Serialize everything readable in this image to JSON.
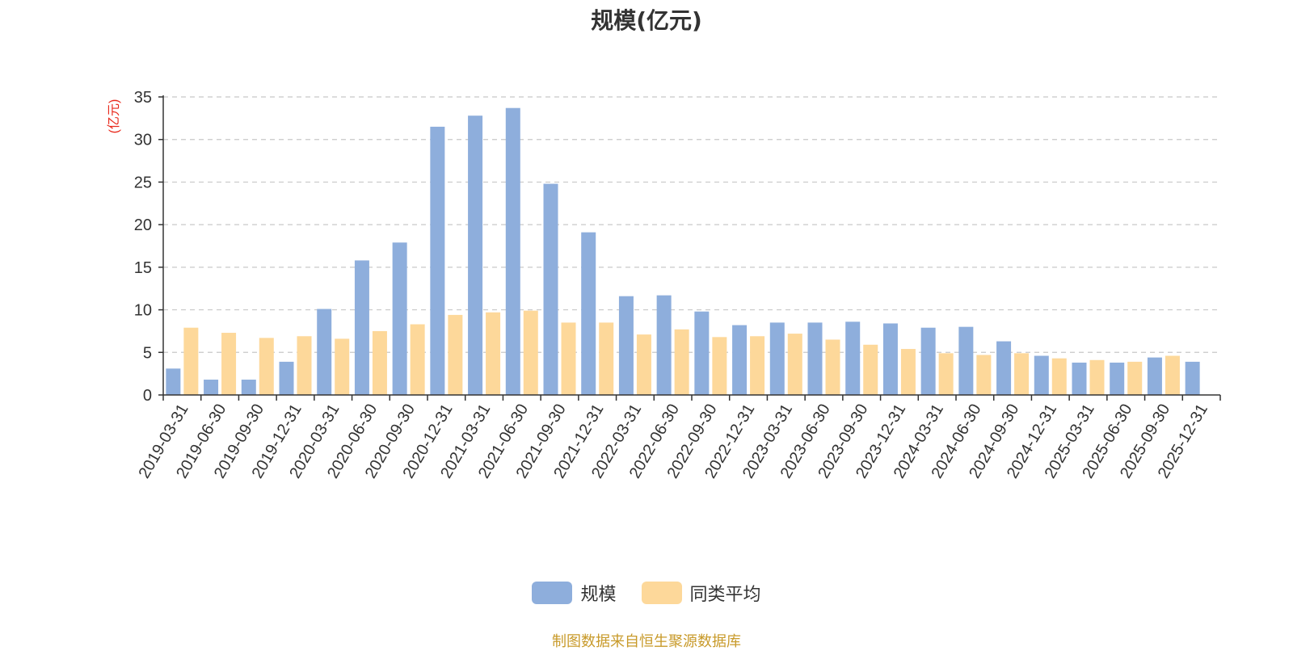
{
  "colors": {
    "series_scale": "#8eaedc",
    "series_avg": "#fdd89a",
    "unit_label": "#e8291c",
    "source": "#c89a2a"
  },
  "chart_data": {
    "type": "bar",
    "title": "规模(亿元)",
    "ylabel": "(亿元)",
    "ylim": [
      0,
      35
    ],
    "yticks": [
      0,
      5,
      10,
      15,
      20,
      25,
      30,
      35
    ],
    "grid": true,
    "legend_position": "bottom",
    "categories": [
      "2019-03-31",
      "2019-06-30",
      "2019-09-30",
      "2019-12-31",
      "2020-03-31",
      "2020-06-30",
      "2020-09-30",
      "2020-12-31",
      "2021-03-31",
      "2021-06-30",
      "2021-09-30",
      "2021-12-31",
      "2022-03-31",
      "2022-06-30",
      "2022-09-30",
      "2022-12-31",
      "2023-03-31",
      "2023-06-30",
      "2023-09-30",
      "2023-12-31",
      "2024-03-31",
      "2024-06-30",
      "2024-09-30",
      "2024-12-31",
      "2025-03-31",
      "2025-06-30",
      "2025-09-30",
      "2025-12-31"
    ],
    "series": [
      {
        "name": "规模",
        "values": [
          3.1,
          1.8,
          1.8,
          3.9,
          10.1,
          15.8,
          17.9,
          31.5,
          32.8,
          33.7,
          24.8,
          19.1,
          11.6,
          11.7,
          9.8,
          8.2,
          8.5,
          8.5,
          8.6,
          8.4,
          7.9,
          8.0,
          6.3,
          4.6,
          3.8,
          3.8,
          4.4,
          3.9
        ]
      },
      {
        "name": "同类平均",
        "values": [
          7.9,
          7.3,
          6.7,
          6.9,
          6.6,
          7.5,
          8.3,
          9.4,
          9.7,
          9.9,
          8.5,
          8.5,
          7.1,
          7.7,
          6.8,
          6.9,
          7.2,
          6.5,
          5.9,
          5.4,
          4.9,
          4.7,
          4.9,
          4.3,
          4.1,
          3.9,
          4.6,
          null
        ]
      }
    ],
    "source_note": "制图数据来自恒生聚源数据库"
  }
}
